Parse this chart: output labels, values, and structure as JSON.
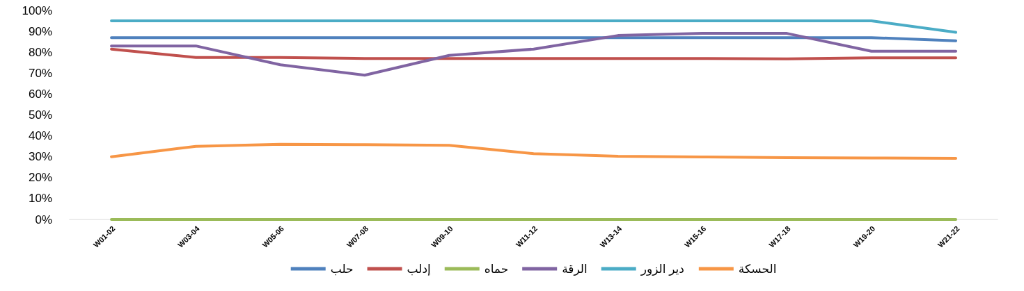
{
  "chart_data": {
    "type": "line",
    "categories": [
      "W01-02",
      "W03-04",
      "W05-06",
      "W07-08",
      "W09-10",
      "W11-12",
      "W13-14",
      "W15-16",
      "W17-18",
      "W19-20",
      "W21-22"
    ],
    "ylim": [
      0,
      100
    ],
    "yticks": [
      {
        "value": 0,
        "label": "0%"
      },
      {
        "value": 10,
        "label": "10%"
      },
      {
        "value": 20,
        "label": "20%"
      },
      {
        "value": 30,
        "label": "30%"
      },
      {
        "value": 40,
        "label": "40%"
      },
      {
        "value": 50,
        "label": "50%"
      },
      {
        "value": 60,
        "label": "60%"
      },
      {
        "value": 70,
        "label": "70%"
      },
      {
        "value": 80,
        "label": "80%"
      },
      {
        "value": 90,
        "label": "90%"
      },
      {
        "value": 100,
        "label": "100%"
      }
    ],
    "grid": false,
    "legend": "bottom",
    "marker": "none",
    "line_style": "solid",
    "series": [
      {
        "name": "حلب",
        "color": "#4f81bd",
        "values": [
          87,
          87,
          87,
          87,
          87,
          87,
          87,
          87,
          87,
          87,
          85.5
        ]
      },
      {
        "name": "إدلب",
        "color": "#c0504d",
        "values": [
          81.5,
          77.5,
          77.5,
          77,
          77,
          77,
          77,
          77,
          76.8,
          77.3,
          77.3
        ]
      },
      {
        "name": "حماه",
        "color": "#9bbb59",
        "values": [
          0,
          0,
          0,
          0,
          0,
          0,
          0,
          0,
          0,
          0,
          0
        ]
      },
      {
        "name": "الرقة",
        "color": "#8064a2",
        "values": [
          83,
          83,
          74,
          69,
          78.5,
          81.5,
          88,
          89,
          89,
          80.5,
          80.5
        ]
      },
      {
        "name": "دير الزور",
        "color": "#4bacc6",
        "values": [
          95,
          95,
          95,
          95,
          95,
          95,
          95,
          95,
          95,
          95,
          89.5
        ]
      },
      {
        "name": "الحسكة",
        "color": "#f79646",
        "values": [
          30,
          35,
          36,
          35.8,
          35.5,
          31.5,
          30.2,
          29.9,
          29.6,
          29.4,
          29.2
        ]
      }
    ]
  }
}
